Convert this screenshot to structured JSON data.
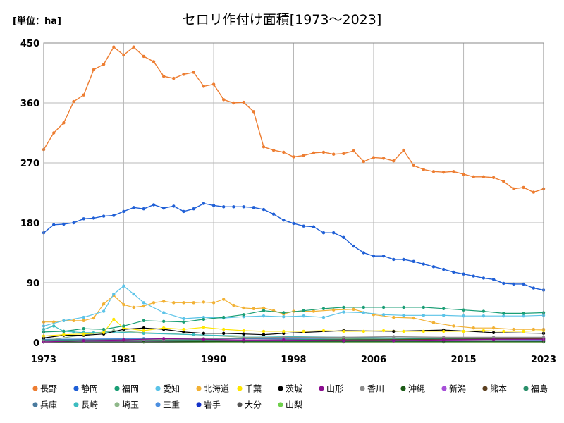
{
  "chart_data": {
    "type": "line",
    "title": "セロリ作付け面積[1973～2023]",
    "unit_label": "[単位：ha]",
    "xlim": [
      1973,
      2023
    ],
    "ylim": [
      0,
      450
    ],
    "x_ticks": [
      "1973",
      "1981",
      "1990",
      "1998",
      "2006",
      "2015",
      "2023"
    ],
    "y_ticks": [
      "0",
      "90",
      "180",
      "270",
      "360",
      "450"
    ],
    "grid": true,
    "legend_position": "bottom",
    "series": [
      {
        "name": "長野",
        "color": "#ed7d31",
        "x": [
          1973,
          1974,
          1975,
          1976,
          1977,
          1978,
          1979,
          1980,
          1981,
          1982,
          1983,
          1984,
          1985,
          1986,
          1987,
          1988,
          1989,
          1990,
          1991,
          1992,
          1993,
          1994,
          1995,
          1996,
          1997,
          1998,
          1999,
          2000,
          2001,
          2002,
          2003,
          2004,
          2005,
          2006,
          2007,
          2008,
          2009,
          2010,
          2011,
          2012,
          2013,
          2014,
          2015,
          2016,
          2017,
          2018,
          2019,
          2020,
          2021,
          2022,
          2023
        ],
        "values": [
          290,
          315,
          330,
          362,
          372,
          410,
          418,
          444,
          432,
          444,
          430,
          422,
          400,
          397,
          403,
          406,
          385,
          388,
          365,
          360,
          361,
          347,
          294,
          289,
          286,
          279,
          281,
          285,
          286,
          283,
          284,
          288,
          272,
          278,
          277,
          273,
          289,
          266,
          260,
          257,
          256,
          257,
          253,
          249,
          249,
          248,
          242,
          231,
          233,
          226,
          231
        ]
      },
      {
        "name": "静岡",
        "color": "#1f5fd6",
        "x": [
          1973,
          1974,
          1975,
          1976,
          1977,
          1978,
          1979,
          1980,
          1981,
          1982,
          1983,
          1984,
          1985,
          1986,
          1987,
          1988,
          1989,
          1990,
          1991,
          1992,
          1993,
          1994,
          1995,
          1996,
          1997,
          1998,
          1999,
          2000,
          2001,
          2002,
          2003,
          2004,
          2005,
          2006,
          2007,
          2008,
          2009,
          2010,
          2011,
          2012,
          2013,
          2014,
          2015,
          2016,
          2017,
          2018,
          2019,
          2020,
          2021,
          2022,
          2023
        ],
        "values": [
          165,
          177,
          178,
          180,
          186,
          187,
          190,
          191,
          197,
          203,
          201,
          207,
          202,
          205,
          197,
          201,
          209,
          206,
          204,
          204,
          204,
          203,
          200,
          193,
          184,
          179,
          175,
          174,
          165,
          165,
          158,
          145,
          135,
          130,
          130,
          125,
          125,
          122,
          118,
          114,
          110,
          106,
          103,
          100,
          97,
          95,
          89,
          88,
          88,
          82,
          79
        ]
      },
      {
        "name": "福岡",
        "color": "#1a9e75",
        "x": [
          1973,
          1975,
          1977,
          1979,
          1981,
          1983,
          1985,
          1987,
          1989,
          1991,
          1993,
          1995,
          1997,
          1999,
          2001,
          2003,
          2005,
          2007,
          2009,
          2011,
          2013,
          2015,
          2017,
          2019,
          2021,
          2023
        ],
        "values": [
          16,
          17,
          21,
          20,
          25,
          33,
          32,
          31,
          35,
          38,
          42,
          48,
          45,
          48,
          51,
          53,
          53,
          53,
          53,
          53,
          51,
          49,
          47,
          44,
          44,
          45
        ]
      },
      {
        "name": "愛知",
        "color": "#5bc3e8",
        "x": [
          1973,
          1975,
          1977,
          1979,
          1980,
          1981,
          1982,
          1983,
          1985,
          1987,
          1989,
          1991,
          1993,
          1995,
          1997,
          1999,
          2001,
          2003,
          2005,
          2007,
          2009,
          2011,
          2013,
          2015,
          2017,
          2019,
          2021,
          2023
        ],
        "values": [
          25,
          33,
          38,
          47,
          73,
          85,
          73,
          60,
          45,
          36,
          38,
          37,
          39,
          40,
          39,
          40,
          38,
          46,
          45,
          42,
          41,
          41,
          41,
          40,
          40,
          40,
          40,
          41
        ]
      },
      {
        "name": "北海道",
        "color": "#f2b134",
        "x": [
          1973,
          1974,
          1975,
          1976,
          1977,
          1978,
          1979,
          1980,
          1981,
          1982,
          1983,
          1984,
          1985,
          1986,
          1987,
          1988,
          1989,
          1990,
          1991,
          1992,
          1993,
          1994,
          1995,
          1996,
          1997,
          1998,
          2000,
          2002,
          2004,
          2006,
          2008,
          2010,
          2012,
          2014,
          2016,
          2018,
          2020,
          2022,
          2023
        ],
        "values": [
          31,
          31,
          33,
          33,
          33,
          37,
          58,
          71,
          57,
          53,
          55,
          60,
          62,
          60,
          60,
          60,
          61,
          60,
          65,
          56,
          52,
          51,
          52,
          48,
          43,
          47,
          47,
          49,
          50,
          42,
          38,
          37,
          30,
          25,
          22,
          22,
          20,
          20,
          20
        ]
      },
      {
        "name": "千葉",
        "color": "#ffe600",
        "x": [
          1973,
          1975,
          1977,
          1979,
          1980,
          1981,
          1983,
          1985,
          1987,
          1989,
          1991,
          1993,
          1995,
          1997,
          1999,
          2001,
          2003,
          2005,
          2007,
          2009,
          2011,
          2013,
          2015,
          2017,
          2019,
          2021,
          2023
        ],
        "values": [
          10,
          12,
          13,
          15,
          35,
          22,
          18,
          22,
          20,
          23,
          20,
          18,
          17,
          17,
          17,
          18,
          17,
          17,
          18,
          17,
          17,
          17,
          17,
          18,
          17,
          17,
          18
        ]
      },
      {
        "name": "茨城",
        "color": "#000000",
        "x": [
          1973,
          1975,
          1977,
          1979,
          1981,
          1983,
          1985,
          1987,
          1989,
          1991,
          1993,
          1995,
          1997,
          2003,
          2008,
          2013,
          2018,
          2023
        ],
        "values": [
          7,
          11,
          11,
          13,
          20,
          22,
          20,
          16,
          14,
          14,
          13,
          12,
          14,
          18,
          17,
          19,
          15,
          14
        ]
      },
      {
        "name": "山形",
        "color": "#8b0d8f",
        "x": [
          1973,
          1977,
          1981,
          1985,
          1989,
          1993,
          1997,
          2003,
          2008,
          2013,
          2018,
          2023
        ],
        "values": [
          1,
          3,
          4,
          6,
          5,
          4,
          4,
          3,
          3,
          4,
          5,
          5
        ]
      },
      {
        "name": "香川",
        "color": "#8c8c8c",
        "x": [
          1973,
          1977,
          1981,
          1985,
          1989,
          1993,
          1997,
          2003,
          2008,
          2013,
          2018,
          2023
        ],
        "values": [
          2,
          3,
          4,
          5,
          6,
          7,
          8,
          8,
          9,
          8,
          8,
          8
        ]
      },
      {
        "name": "沖縄",
        "color": "#1c5a16",
        "x": [
          1973,
          1983,
          1993,
          2003,
          2013,
          2023
        ],
        "values": [
          1,
          1,
          2,
          2,
          2,
          2
        ]
      },
      {
        "name": "新潟",
        "color": "#a64fd8",
        "x": [
          1973,
          1983,
          1993,
          2003,
          2013,
          2023
        ],
        "values": [
          2,
          2,
          3,
          3,
          3,
          3
        ]
      },
      {
        "name": "熊本",
        "color": "#5c4020",
        "x": [
          1973,
          1983,
          1993,
          2003,
          2013,
          2023
        ],
        "values": [
          1,
          2,
          3,
          4,
          5,
          6
        ]
      },
      {
        "name": "福島",
        "color": "#2a8f6a",
        "x": [
          1973,
          1983,
          1993,
          2003,
          2013,
          2023
        ],
        "values": [
          3,
          4,
          4,
          5,
          6,
          6
        ]
      },
      {
        "name": "兵庫",
        "color": "#4a7a9e",
        "x": [
          1973,
          1983,
          1993,
          2003,
          2013,
          2023
        ],
        "values": [
          4,
          5,
          6,
          7,
          7,
          7
        ]
      },
      {
        "name": "長崎",
        "color": "#3cbcc0",
        "x": [
          1973,
          1974,
          1975,
          1976,
          1977,
          1978,
          1980,
          1983,
          1988,
          1993,
          2003,
          2013,
          2023
        ],
        "values": [
          20,
          25,
          17,
          16,
          15,
          15,
          16,
          14,
          12,
          10,
          8,
          6,
          5
        ]
      },
      {
        "name": "埼玉",
        "color": "#8fb88a",
        "x": [
          1973,
          1980,
          1983,
          1988,
          1993,
          2003,
          2013,
          2023
        ],
        "values": [
          3,
          18,
          15,
          12,
          8,
          6,
          4,
          3
        ]
      },
      {
        "name": "三重",
        "color": "#4d8fe0",
        "x": [
          1973,
          1983,
          1993,
          2003,
          2013,
          2023
        ],
        "values": [
          5,
          6,
          6,
          5,
          4,
          4
        ]
      },
      {
        "name": "岩手",
        "color": "#1432c8",
        "x": [
          1973,
          1983,
          1993,
          2003,
          2013,
          2023
        ],
        "values": [
          1,
          2,
          2,
          2,
          2,
          2
        ]
      },
      {
        "name": "大分",
        "color": "#555555",
        "x": [
          1973,
          1983,
          1993,
          2003,
          2013,
          2023
        ],
        "values": [
          2,
          3,
          3,
          4,
          4,
          4
        ]
      },
      {
        "name": "山梨",
        "color": "#6fd04c",
        "x": [
          1973,
          1983,
          1993,
          2003,
          2013,
          2023
        ],
        "values": [
          1,
          1,
          1,
          1,
          1,
          1
        ]
      }
    ]
  }
}
